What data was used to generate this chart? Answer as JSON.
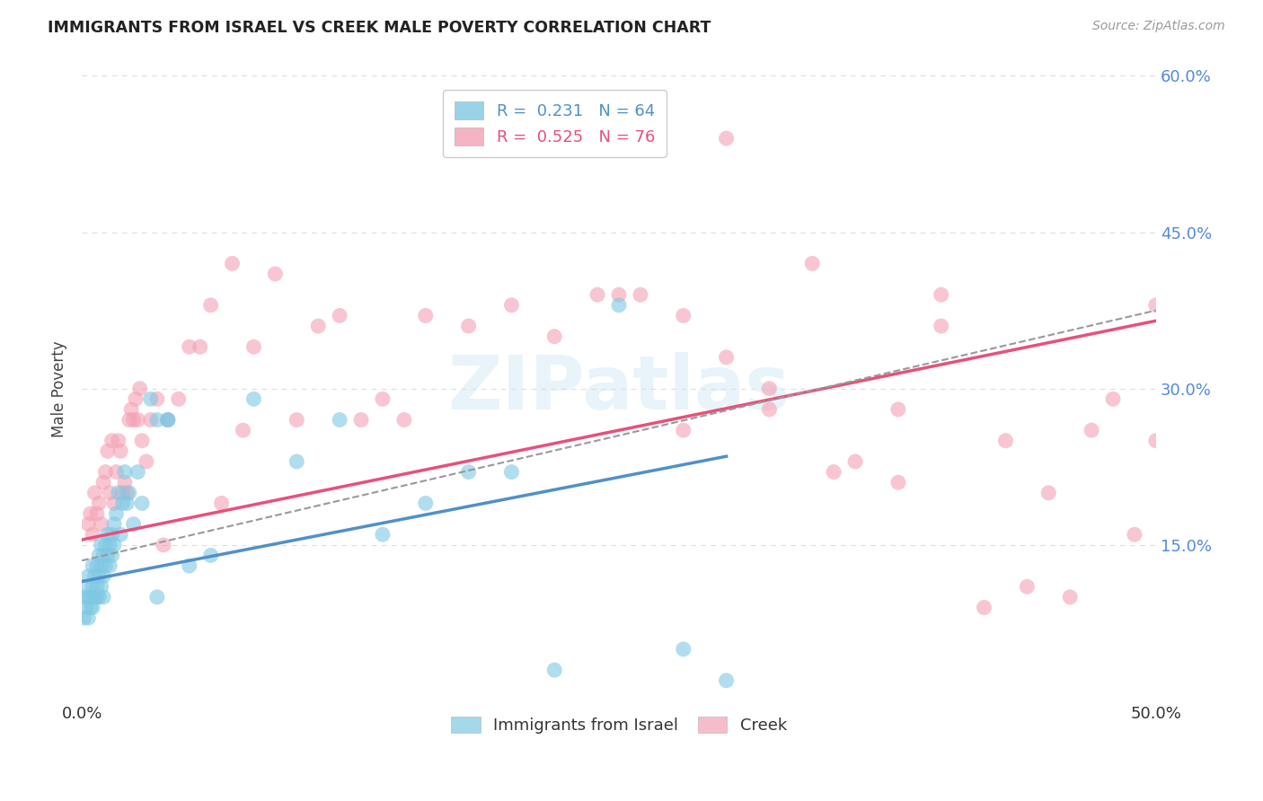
{
  "title": "IMMIGRANTS FROM ISRAEL VS CREEK MALE POVERTY CORRELATION CHART",
  "source": "Source: ZipAtlas.com",
  "ylabel": "Male Poverty",
  "xlim": [
    0.0,
    0.5
  ],
  "ylim": [
    0.0,
    0.6
  ],
  "xtick_positions": [
    0.0,
    0.1,
    0.2,
    0.3,
    0.4,
    0.5
  ],
  "xticklabels": [
    "0.0%",
    "",
    "",
    "",
    "",
    "50.0%"
  ],
  "ytick_right_positions": [
    0.15,
    0.3,
    0.45,
    0.6
  ],
  "yticklabels_right": [
    "15.0%",
    "30.0%",
    "45.0%",
    "60.0%"
  ],
  "legend_line1": "R =  0.231   N = 64",
  "legend_line2": "R =  0.525   N = 76",
  "blue_color": "#7ec8e3",
  "pink_color": "#f4a0b5",
  "blue_line_color": "#5090c8",
  "pink_line_color": "#e8507a",
  "dashed_line_color": "#999999",
  "title_color": "#222222",
  "axis_label_color": "#444444",
  "right_tick_color": "#5588dd",
  "watermark": "ZIPatlas",
  "background_color": "#ffffff",
  "grid_color": "#dddddd",
  "blue_scatter_x": [
    0.001,
    0.001,
    0.002,
    0.002,
    0.003,
    0.003,
    0.003,
    0.004,
    0.004,
    0.005,
    0.005,
    0.005,
    0.006,
    0.006,
    0.007,
    0.007,
    0.007,
    0.008,
    0.008,
    0.008,
    0.009,
    0.009,
    0.009,
    0.01,
    0.01,
    0.01,
    0.011,
    0.011,
    0.012,
    0.012,
    0.013,
    0.013,
    0.014,
    0.014,
    0.015,
    0.015,
    0.016,
    0.017,
    0.018,
    0.019,
    0.02,
    0.021,
    0.022,
    0.024,
    0.026,
    0.028,
    0.032,
    0.035,
    0.04,
    0.05,
    0.06,
    0.08,
    0.1,
    0.12,
    0.14,
    0.16,
    0.18,
    0.2,
    0.22,
    0.25,
    0.28,
    0.3,
    0.035,
    0.04
  ],
  "blue_scatter_y": [
    0.1,
    0.08,
    0.09,
    0.11,
    0.1,
    0.08,
    0.12,
    0.1,
    0.09,
    0.11,
    0.09,
    0.13,
    0.1,
    0.12,
    0.11,
    0.13,
    0.1,
    0.12,
    0.1,
    0.14,
    0.13,
    0.11,
    0.15,
    0.14,
    0.12,
    0.1,
    0.15,
    0.13,
    0.16,
    0.14,
    0.15,
    0.13,
    0.16,
    0.14,
    0.17,
    0.15,
    0.18,
    0.2,
    0.16,
    0.19,
    0.22,
    0.19,
    0.2,
    0.17,
    0.22,
    0.19,
    0.29,
    0.27,
    0.27,
    0.13,
    0.14,
    0.29,
    0.23,
    0.27,
    0.16,
    0.19,
    0.22,
    0.22,
    0.03,
    0.38,
    0.05,
    0.02,
    0.1,
    0.27
  ],
  "pink_scatter_x": [
    0.003,
    0.004,
    0.005,
    0.006,
    0.007,
    0.008,
    0.009,
    0.01,
    0.011,
    0.012,
    0.013,
    0.014,
    0.015,
    0.016,
    0.017,
    0.018,
    0.019,
    0.02,
    0.021,
    0.022,
    0.023,
    0.024,
    0.025,
    0.026,
    0.027,
    0.028,
    0.03,
    0.032,
    0.035,
    0.038,
    0.04,
    0.045,
    0.05,
    0.055,
    0.06,
    0.065,
    0.07,
    0.075,
    0.08,
    0.09,
    0.1,
    0.11,
    0.12,
    0.13,
    0.14,
    0.15,
    0.16,
    0.18,
    0.2,
    0.22,
    0.24,
    0.26,
    0.28,
    0.3,
    0.32,
    0.34,
    0.36,
    0.38,
    0.4,
    0.42,
    0.44,
    0.46,
    0.48,
    0.5,
    0.25,
    0.28,
    0.3,
    0.32,
    0.35,
    0.38,
    0.4,
    0.43,
    0.45,
    0.47,
    0.49,
    0.5
  ],
  "pink_scatter_y": [
    0.17,
    0.18,
    0.16,
    0.2,
    0.18,
    0.19,
    0.17,
    0.21,
    0.22,
    0.24,
    0.2,
    0.25,
    0.19,
    0.22,
    0.25,
    0.24,
    0.2,
    0.21,
    0.2,
    0.27,
    0.28,
    0.27,
    0.29,
    0.27,
    0.3,
    0.25,
    0.23,
    0.27,
    0.29,
    0.15,
    0.27,
    0.29,
    0.34,
    0.34,
    0.38,
    0.19,
    0.42,
    0.26,
    0.34,
    0.41,
    0.27,
    0.36,
    0.37,
    0.27,
    0.29,
    0.27,
    0.37,
    0.36,
    0.38,
    0.35,
    0.39,
    0.39,
    0.26,
    0.54,
    0.3,
    0.42,
    0.23,
    0.28,
    0.36,
    0.09,
    0.11,
    0.1,
    0.29,
    0.38,
    0.39,
    0.37,
    0.33,
    0.28,
    0.22,
    0.21,
    0.39,
    0.25,
    0.2,
    0.26,
    0.16,
    0.25
  ],
  "blue_line_x": [
    0.0,
    0.3
  ],
  "blue_line_y": [
    0.115,
    0.235
  ],
  "pink_line_x": [
    0.0,
    0.5
  ],
  "pink_line_y": [
    0.155,
    0.365
  ],
  "dashed_line_x": [
    0.0,
    0.5
  ],
  "dashed_line_y": [
    0.135,
    0.375
  ]
}
